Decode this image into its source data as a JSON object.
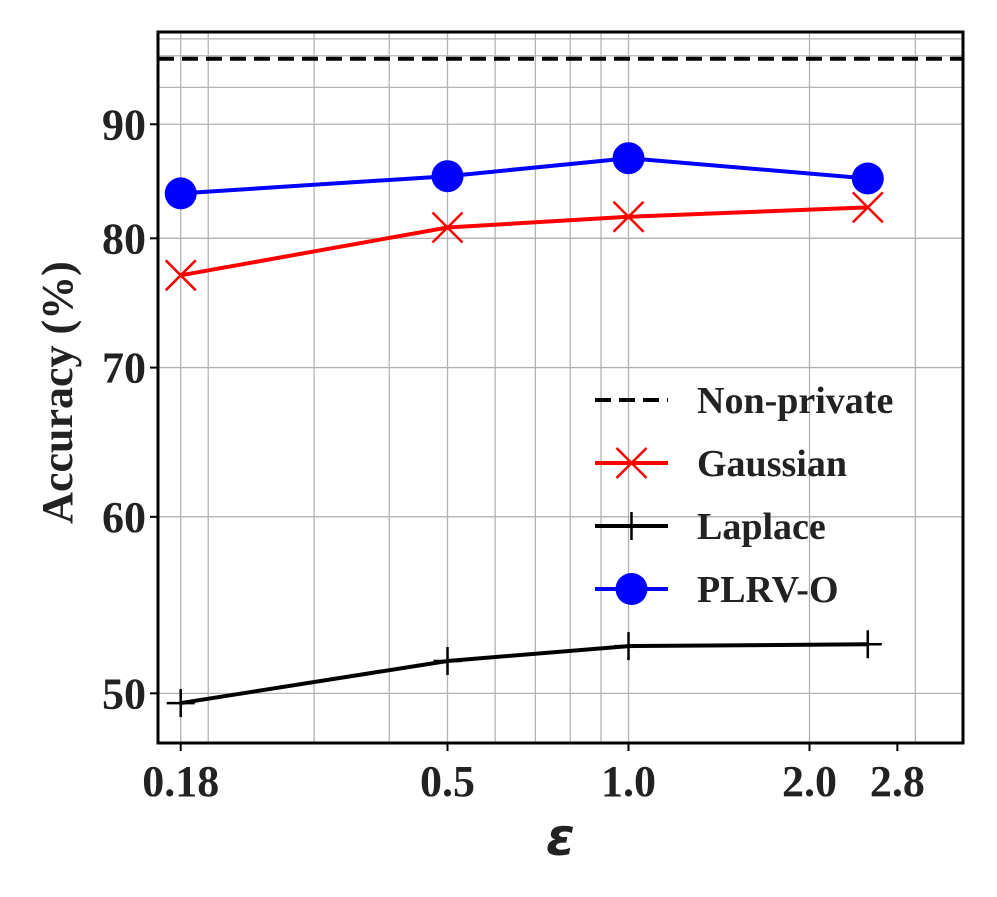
{
  "chart_data": {
    "type": "line",
    "xscale": "log",
    "yscale": "log",
    "xlabel": "ε",
    "ylabel": "Accuracy (%)",
    "xlim": [
      0.165,
      3.6
    ],
    "ylim": [
      47.5,
      99
    ],
    "x_ticks": [
      0.18,
      0.5,
      1.0,
      2.0,
      2.8
    ],
    "x_tick_labels": [
      "0.18",
      "0.5",
      "1.0",
      "2.0",
      "2.8"
    ],
    "y_ticks": [
      50,
      60,
      70,
      80,
      90
    ],
    "y_tick_labels": [
      "50",
      "60",
      "70",
      "80",
      "90"
    ],
    "grid": true,
    "legend_position": "center-right",
    "series": [
      {
        "name": "Non-private",
        "color": "#000000",
        "style": "dashed",
        "marker": "none",
        "x": [
          0.165,
          3.6
        ],
        "y": [
          96.3,
          96.3
        ]
      },
      {
        "name": "Gaussian",
        "color": "#ff0000",
        "style": "solid",
        "marker": "x",
        "x": [
          0.18,
          0.5,
          1.0,
          2.5
        ],
        "y": [
          77.0,
          80.9,
          81.8,
          82.6
        ]
      },
      {
        "name": "Laplace",
        "color": "#000000",
        "style": "solid",
        "marker": "plus",
        "x": [
          0.18,
          0.5,
          1.0,
          2.5
        ],
        "y": [
          49.5,
          51.7,
          52.5,
          52.6
        ]
      },
      {
        "name": "PLRV-O",
        "color": "#0000ff",
        "style": "solid",
        "marker": "circle",
        "x": [
          0.18,
          0.5,
          1.0,
          2.5
        ],
        "y": [
          83.8,
          85.3,
          86.9,
          85.1
        ]
      }
    ]
  }
}
